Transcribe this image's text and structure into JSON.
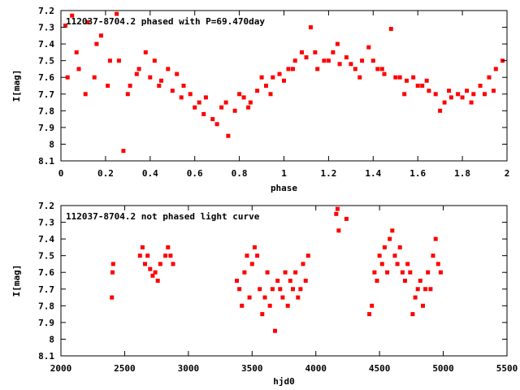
{
  "chart_data": [
    {
      "type": "scatter",
      "title": "112037-8704.2 phased with P=69.470day",
      "xlabel": "phase",
      "ylabel": "I[mag]",
      "xlim": [
        0,
        2
      ],
      "ylim": [
        7.2,
        8.1
      ],
      "y_inverted": true,
      "x_ticks": [
        "0",
        "0.2",
        "0.4",
        "0.6",
        "0.8",
        "1",
        "1.2",
        "1.4",
        "1.6",
        "1.8",
        "2"
      ],
      "y_ticks": [
        "7.2",
        "7.3",
        "7.4",
        "7.5",
        "7.6",
        "7.7",
        "7.8",
        "7.9",
        "8",
        "8.1"
      ],
      "grid": false,
      "marker_color": "#ff0000",
      "series": [
        {
          "x": [
            0.02,
            0.05,
            0.08,
            0.12,
            0.15,
            0.18,
            0.22,
            0.25,
            0.28,
            0.31,
            0.34,
            0.38,
            0.42,
            0.45,
            0.48,
            0.52,
            0.55,
            0.58,
            0.62,
            0.65,
            0.68,
            0.72,
            0.75,
            0.78,
            0.82,
            0.85,
            0.88,
            0.92,
            0.95,
            0.98,
            1.02,
            1.05,
            1.08,
            1.12,
            1.15,
            1.18,
            1.22,
            1.25,
            1.28,
            1.32,
            1.35,
            1.38,
            1.42,
            1.45,
            1.48,
            1.52,
            1.55,
            1.58,
            1.62,
            1.65,
            1.68,
            1.72,
            1.75,
            1.78,
            1.82,
            1.85,
            1.88,
            1.92,
            1.95,
            1.98,
            0.03,
            0.07,
            0.11,
            0.16,
            0.21,
            0.26,
            0.3,
            0.35,
            0.4,
            0.44,
            0.5,
            0.54,
            0.6,
            0.64,
            0.7,
            0.74,
            0.8,
            0.84,
            0.9,
            0.94,
            1.0,
            1.04,
            1.1,
            1.14,
            1.2,
            1.24,
            1.3,
            1.34,
            1.4,
            1.44,
            1.5,
            1.54,
            1.6,
            1.64,
            1.7,
            1.74,
            1.8,
            1.84,
            1.9,
            1.94
          ],
          "y": [
            7.29,
            7.23,
            7.55,
            7.27,
            7.6,
            7.35,
            7.5,
            7.22,
            8.04,
            7.65,
            7.58,
            7.45,
            7.5,
            7.62,
            7.55,
            7.58,
            7.65,
            7.7,
            7.75,
            7.72,
            7.85,
            7.78,
            7.95,
            7.8,
            7.72,
            7.75,
            7.68,
            7.65,
            7.6,
            7.58,
            7.55,
            7.5,
            7.45,
            7.3,
            7.55,
            7.5,
            7.45,
            7.52,
            7.48,
            7.55,
            7.5,
            7.42,
            7.55,
            7.58,
            7.31,
            7.6,
            7.62,
            7.6,
            7.65,
            7.68,
            7.7,
            7.75,
            7.72,
            7.7,
            7.68,
            7.7,
            7.65,
            7.6,
            7.55,
            7.5,
            7.6,
            7.45,
            7.7,
            7.4,
            7.65,
            7.5,
            7.7,
            7.55,
            7.6,
            7.65,
            7.68,
            7.72,
            7.78,
            7.82,
            7.88,
            7.75,
            7.7,
            7.78,
            7.6,
            7.7,
            7.62,
            7.55,
            7.48,
            7.45,
            7.5,
            7.4,
            7.52,
            7.6,
            7.5,
            7.55,
            7.6,
            7.7,
            7.65,
            7.62,
            7.8,
            7.68,
            7.72,
            7.75,
            7.7,
            7.68
          ]
        }
      ]
    },
    {
      "type": "scatter",
      "title": "112037-8704.2 not phased light curve",
      "xlabel": "hjd0",
      "ylabel": "I[mag]",
      "xlim": [
        2000,
        5500
      ],
      "ylim": [
        7.2,
        8.1
      ],
      "y_inverted": true,
      "x_ticks": [
        "2000",
        "2500",
        "3000",
        "3500",
        "4000",
        "4500",
        "5000",
        "5500"
      ],
      "y_ticks": [
        "7.2",
        "7.3",
        "7.4",
        "7.5",
        "7.6",
        "7.7",
        "7.8",
        "7.9",
        "8",
        "8.1"
      ],
      "grid": false,
      "marker_color": "#ff0000",
      "series": [
        {
          "x": [
            2400,
            2405,
            2410,
            2620,
            2640,
            2660,
            2680,
            2700,
            2720,
            2740,
            2760,
            2780,
            2820,
            2840,
            2860,
            2880,
            3380,
            3400,
            3420,
            3440,
            3460,
            3480,
            3500,
            3520,
            3540,
            3560,
            3580,
            3600,
            3620,
            3640,
            3660,
            3680,
            3700,
            3720,
            3740,
            3760,
            3780,
            3800,
            3820,
            3840,
            3860,
            3880,
            3900,
            3920,
            3940,
            4160,
            4170,
            4180,
            4240,
            4420,
            4440,
            4460,
            4480,
            4500,
            4520,
            4540,
            4560,
            4580,
            4600,
            4620,
            4640,
            4660,
            4680,
            4700,
            4720,
            4740,
            4760,
            4780,
            4800,
            4820,
            4840,
            4860,
            4880,
            4900,
            4920,
            4940,
            4960,
            4980
          ],
          "y": [
            7.75,
            7.6,
            7.55,
            7.5,
            7.45,
            7.55,
            7.5,
            7.58,
            7.62,
            7.6,
            7.65,
            7.55,
            7.5,
            7.45,
            7.5,
            7.55,
            7.65,
            7.7,
            7.8,
            7.6,
            7.5,
            7.75,
            7.55,
            7.45,
            7.5,
            7.7,
            7.85,
            7.75,
            7.6,
            7.8,
            7.7,
            7.95,
            7.65,
            7.7,
            7.75,
            7.6,
            7.8,
            7.65,
            7.7,
            7.6,
            7.75,
            7.7,
            7.55,
            7.65,
            7.5,
            7.25,
            7.22,
            7.35,
            7.28,
            7.85,
            7.8,
            7.6,
            7.65,
            7.5,
            7.55,
            7.45,
            7.6,
            7.4,
            7.35,
            7.5,
            7.55,
            7.45,
            7.6,
            7.65,
            7.55,
            7.6,
            7.85,
            7.75,
            7.7,
            7.65,
            7.8,
            7.7,
            7.6,
            7.7,
            7.5,
            7.4,
            7.55,
            7.6
          ]
        }
      ]
    }
  ]
}
